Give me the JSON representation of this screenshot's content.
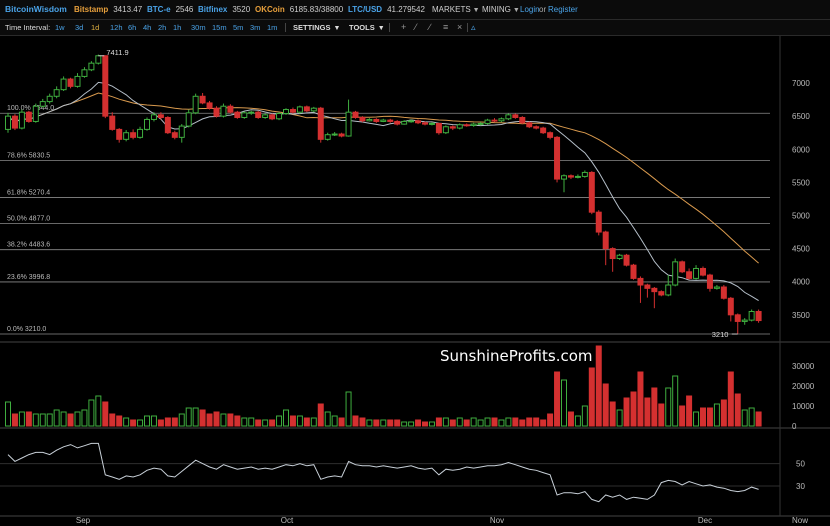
{
  "header": {
    "logo": "BitcoinWisdom",
    "tickers": [
      {
        "name": "Bitstamp",
        "value": "3413.47",
        "color": "#e8a03c"
      },
      {
        "name": "BTC-e",
        "value": "2546",
        "color": "#4aa3e8"
      },
      {
        "name": "Bitfinex",
        "value": "3520",
        "color": "#4aa3e8"
      },
      {
        "name": "OKCoin",
        "value": "6185.83/38800",
        "color": "#e8a03c"
      },
      {
        "name": "LTC/USD",
        "value": "41.279542",
        "color": "#4aa3e8"
      }
    ],
    "markets_label": "MARKETS",
    "mining_label": "MINING",
    "login_label": "Login",
    "or_label": "or",
    "register_label": "Register"
  },
  "toolbar": {
    "interval_label": "Time Interval:",
    "intervals": [
      "1w",
      "3d",
      "1d",
      "12h",
      "6h",
      "4h",
      "2h",
      "1h",
      "30m",
      "15m",
      "5m",
      "3m",
      "1m"
    ],
    "selected_interval": "1d",
    "settings_label": "SETTINGS",
    "tools_label": "TOOLS",
    "tool_icons": [
      "plus-icon",
      "line-icon",
      "ray-icon",
      "fibonacci-icon",
      "close-icon",
      "bell-icon"
    ]
  },
  "watermark": "SunshineProfits.com",
  "colors": {
    "up": "#3fae3f",
    "down": "#d43030",
    "ma_fast": "#b4bec8",
    "ma_slow": "#d99a4e",
    "grid": "#2e2e2e",
    "text": "#bbbbbb"
  },
  "chart_data": {
    "type": "candlestick",
    "x_ticks": [
      "Sep",
      "Oct",
      "Nov",
      "Dec",
      "Now"
    ],
    "price_axis": {
      "ticks": [
        3500,
        4000,
        4500,
        5000,
        5500,
        6000,
        6500,
        7000
      ],
      "range": [
        3150,
        7650
      ]
    },
    "volume_axis": {
      "ticks": [
        0,
        10000,
        20000,
        30000
      ],
      "range": [
        0,
        40000
      ]
    },
    "indicator_axis": {
      "ticks": [
        30,
        50
      ]
    },
    "fib_levels": [
      {
        "label": "100.0% 6544.0",
        "price": 6544
      },
      {
        "label": "78.6% 5830.5",
        "price": 5830.5
      },
      {
        "label": "61.8% 5270.4",
        "price": 5270.4
      },
      {
        "label": "50.0% 4877.0",
        "price": 4877
      },
      {
        "label": "38.2% 4483.6",
        "price": 4483.6
      },
      {
        "label": "23.6% 3996.8",
        "price": 3996.8
      },
      {
        "label": "0.0% 3210.0",
        "price": 3210
      }
    ],
    "annotations": [
      {
        "text": "7411.9",
        "price": 7411.9
      },
      {
        "text": "3210",
        "price": 3210
      }
    ],
    "candles": [
      [
        6300,
        6500,
        6250,
        6550
      ],
      [
        6500,
        6320,
        6290,
        6530
      ],
      [
        6320,
        6560,
        6300,
        6600
      ],
      [
        6560,
        6420,
        6400,
        6580
      ],
      [
        6420,
        6650,
        6400,
        6690
      ],
      [
        6650,
        6720,
        6630,
        6760
      ],
      [
        6720,
        6800,
        6690,
        6840
      ],
      [
        6800,
        6900,
        6770,
        6950
      ],
      [
        6900,
        7060,
        6880,
        7100
      ],
      [
        7060,
        6950,
        6920,
        7080
      ],
      [
        6950,
        7100,
        6930,
        7150
      ],
      [
        7100,
        7200,
        7080,
        7240
      ],
      [
        7200,
        7300,
        7180,
        7330
      ],
      [
        7300,
        7411.9,
        7280,
        7430
      ],
      [
        7411.9,
        6500,
        6470,
        7420
      ],
      [
        6500,
        6300,
        6280,
        6560
      ],
      [
        6300,
        6150,
        6100,
        6320
      ],
      [
        6150,
        6250,
        6120,
        6290
      ],
      [
        6250,
        6180,
        6150,
        6300
      ],
      [
        6180,
        6300,
        6160,
        6340
      ],
      [
        6300,
        6450,
        6280,
        6480
      ],
      [
        6450,
        6520,
        6420,
        6560
      ],
      [
        6520,
        6480,
        6450,
        6560
      ],
      [
        6480,
        6250,
        6230,
        6500
      ],
      [
        6250,
        6180,
        6150,
        6280
      ],
      [
        6180,
        6350,
        6100,
        6380
      ],
      [
        6350,
        6550,
        6330,
        6600
      ],
      [
        6550,
        6800,
        6530,
        6840
      ],
      [
        6800,
        6700,
        6680,
        6850
      ],
      [
        6700,
        6620,
        6600,
        6730
      ],
      [
        6620,
        6500,
        6480,
        6650
      ],
      [
        6500,
        6650,
        6480,
        6690
      ],
      [
        6650,
        6560,
        6540,
        6680
      ],
      [
        6560,
        6480,
        6460,
        6580
      ],
      [
        6480,
        6550,
        6460,
        6570
      ],
      [
        6550,
        6560,
        6520,
        6580
      ],
      [
        6560,
        6480,
        6460,
        6580
      ],
      [
        6480,
        6520,
        6460,
        6540
      ],
      [
        6520,
        6460,
        6440,
        6540
      ],
      [
        6460,
        6540,
        6440,
        6560
      ],
      [
        6540,
        6600,
        6520,
        6620
      ],
      [
        6600,
        6560,
        6540,
        6630
      ],
      [
        6560,
        6640,
        6540,
        6660
      ],
      [
        6640,
        6580,
        6560,
        6660
      ],
      [
        6580,
        6620,
        6560,
        6640
      ],
      [
        6620,
        6150,
        6100,
        6640
      ],
      [
        6150,
        6220,
        6130,
        6250
      ],
      [
        6220,
        6230,
        6200,
        6260
      ],
      [
        6230,
        6200,
        6180,
        6250
      ],
      [
        6200,
        6560,
        6190,
        6750
      ],
      [
        6560,
        6480,
        6460,
        6580
      ],
      [
        6480,
        6430,
        6410,
        6500
      ],
      [
        6430,
        6450,
        6420,
        6470
      ],
      [
        6450,
        6420,
        6400,
        6470
      ],
      [
        6420,
        6440,
        6410,
        6460
      ],
      [
        6440,
        6420,
        6400,
        6460
      ],
      [
        6420,
        6380,
        6360,
        6440
      ],
      [
        6380,
        6420,
        6370,
        6440
      ],
      [
        6420,
        6430,
        6400,
        6450
      ],
      [
        6430,
        6400,
        6380,
        6450
      ],
      [
        6400,
        6380,
        6360,
        6420
      ],
      [
        6380,
        6390,
        6360,
        6410
      ],
      [
        6390,
        6250,
        6220,
        6400
      ],
      [
        6250,
        6340,
        6230,
        6360
      ],
      [
        6340,
        6320,
        6290,
        6360
      ],
      [
        6320,
        6370,
        6300,
        6390
      ],
      [
        6370,
        6360,
        6340,
        6390
      ],
      [
        6360,
        6380,
        6340,
        6400
      ],
      [
        6380,
        6390,
        6360,
        6410
      ],
      [
        6390,
        6440,
        6370,
        6460
      ],
      [
        6440,
        6430,
        6410,
        6470
      ],
      [
        6430,
        6460,
        6410,
        6480
      ],
      [
        6460,
        6520,
        6440,
        6540
      ],
      [
        6520,
        6480,
        6460,
        6540
      ],
      [
        6480,
        6400,
        6380,
        6500
      ],
      [
        6400,
        6340,
        6320,
        6420
      ],
      [
        6340,
        6320,
        6300,
        6360
      ],
      [
        6320,
        6250,
        6230,
        6340
      ],
      [
        6250,
        6180,
        6150,
        6270
      ],
      [
        6180,
        5550,
        5500,
        6200
      ],
      [
        5550,
        5600,
        5350,
        5620
      ],
      [
        5600,
        5580,
        5550,
        5620
      ],
      [
        5580,
        5590,
        5560,
        5620
      ],
      [
        5590,
        5650,
        5570,
        5680
      ],
      [
        5650,
        5050,
        5020,
        5670
      ],
      [
        5050,
        4750,
        4700,
        5080
      ],
      [
        4750,
        4500,
        4250,
        4770
      ],
      [
        4500,
        4350,
        4150,
        4520
      ],
      [
        4350,
        4400,
        4330,
        4420
      ],
      [
        4400,
        4250,
        4230,
        4420
      ],
      [
        4250,
        4050,
        4030,
        4270
      ],
      [
        4050,
        3950,
        3680,
        4080
      ],
      [
        3950,
        3900,
        3760,
        3970
      ],
      [
        3900,
        3850,
        3600,
        3920
      ],
      [
        3850,
        3800,
        3780,
        3870
      ],
      [
        3800,
        3950,
        3780,
        4100
      ],
      [
        3950,
        4300,
        3930,
        4350
      ],
      [
        4300,
        4150,
        4130,
        4320
      ],
      [
        4150,
        4050,
        4030,
        4200
      ],
      [
        4050,
        4200,
        4030,
        4250
      ],
      [
        4200,
        4100,
        4080,
        4230
      ],
      [
        4100,
        3900,
        3850,
        4120
      ],
      [
        3900,
        3920,
        3880,
        3950
      ],
      [
        3920,
        3750,
        3730,
        3950
      ],
      [
        3750,
        3500,
        3400,
        3770
      ],
      [
        3500,
        3400,
        3210,
        3520
      ],
      [
        3400,
        3420,
        3350,
        3450
      ],
      [
        3420,
        3550,
        3400,
        3580
      ],
      [
        3550,
        3413.47,
        3380,
        3580
      ]
    ],
    "volume": [
      12000,
      6000,
      7000,
      7000,
      6000,
      6000,
      6000,
      8000,
      7000,
      6000,
      7000,
      8000,
      13000,
      15000,
      12000,
      6000,
      5000,
      4000,
      3000,
      3000,
      5000,
      5000,
      3000,
      4000,
      4000,
      6000,
      9000,
      9000,
      8000,
      6000,
      7000,
      6000,
      6000,
      5000,
      4000,
      4000,
      3000,
      3000,
      3000,
      5000,
      8000,
      5000,
      5000,
      4000,
      4000,
      11000,
      7000,
      5000,
      4000,
      17000,
      5000,
      4000,
      3000,
      3000,
      3000,
      3000,
      3000,
      2000,
      2000,
      3000,
      2000,
      2000,
      4000,
      4000,
      3000,
      4000,
      3000,
      4000,
      3000,
      4000,
      4000,
      3000,
      4000,
      4000,
      3000,
      4000,
      4000,
      3000,
      6000,
      27000,
      23000,
      7000,
      5000,
      10000,
      29000,
      40000,
      21000,
      12000,
      8000,
      14000,
      17000,
      27000,
      14000,
      19000,
      11000,
      19000,
      25000,
      10000,
      15000,
      7000,
      9000,
      9000,
      11000,
      13000,
      27000,
      16000,
      8000,
      9000,
      7000
    ],
    "indicator": [
      58,
      52,
      55,
      58,
      60,
      60,
      58,
      62,
      65,
      67,
      64,
      66,
      68,
      68,
      40,
      38,
      36,
      39,
      38,
      40,
      44,
      46,
      45,
      39,
      38,
      43,
      48,
      53,
      50,
      47,
      45,
      49,
      47,
      45,
      46,
      47,
      45,
      46,
      45,
      47,
      49,
      48,
      50,
      48,
      49,
      36,
      38,
      39,
      38,
      52,
      49,
      48,
      48,
      47,
      48,
      47,
      46,
      47,
      48,
      46,
      45,
      46,
      40,
      45,
      44,
      45,
      47,
      46,
      47,
      48,
      48,
      49,
      51,
      49,
      47,
      45,
      44,
      42,
      40,
      22,
      24,
      24,
      23,
      25,
      18,
      16,
      22,
      20,
      22,
      18,
      20,
      19,
      18,
      22,
      33,
      35,
      34,
      31,
      34,
      32,
      30,
      31,
      29,
      28,
      26,
      25,
      26,
      29,
      27
    ]
  }
}
